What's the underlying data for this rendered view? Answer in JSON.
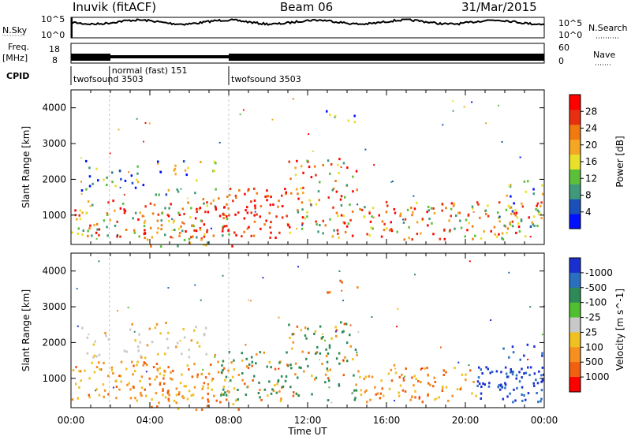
{
  "header": {
    "station": "Inuvik (fitACF)",
    "beam": "Beam 06",
    "date": "31/Mar/2015"
  },
  "top_panels": {
    "nsky_label": "N.Sky",
    "nsky_ticks": [
      "10^5",
      "10^0"
    ],
    "nsearch_label": "N.Search",
    "nsearch_ticks": [
      "10^5",
      "10^0"
    ],
    "freq_label_1": "Freq.",
    "freq_label_2": "[MHz]",
    "freq_ticks": [
      "18",
      "8"
    ],
    "nave_label": "Nave",
    "nave_ticks": [
      "60",
      "0"
    ],
    "cpid_label": "CPID",
    "cpid_segments": [
      {
        "label": "twofsound 3503",
        "start_hour": 0.0
      },
      {
        "label": "normal (fast) 151",
        "start_hour": 1.95
      },
      {
        "label": "twofsound 3503",
        "start_hour": 8.0
      }
    ]
  },
  "chart_data": [
    {
      "type": "heatmap",
      "title": "",
      "xlabel": "Time UT",
      "ylabel": "Slant Range [km]",
      "x_ticks": [
        "00:00",
        "04:00",
        "08:00",
        "12:00",
        "16:00",
        "20:00",
        "00:00"
      ],
      "xlim_hours": [
        0,
        24
      ],
      "y_ticks": [
        1000,
        2000,
        3000,
        4000
      ],
      "ylim": [
        180,
        4500
      ],
      "colorbar": {
        "label": "Power [dB]",
        "ticks": [
          "4",
          "8",
          "12",
          "16",
          "20",
          "24",
          "28"
        ],
        "colors": [
          "#0010ff",
          "#1a50b8",
          "#3f9a7c",
          "#5cbf3a",
          "#e8e02a",
          "#f5a623",
          "#f07a10",
          "#e83010",
          "#ff0000"
        ]
      }
    },
    {
      "type": "heatmap",
      "title": "",
      "xlabel": "Time UT",
      "ylabel": "Slant Range [km]",
      "x_ticks": [
        "00:00",
        "04:00",
        "08:00",
        "12:00",
        "16:00",
        "20:00",
        "00:00"
      ],
      "xlim_hours": [
        0,
        24
      ],
      "y_ticks": [
        1000,
        2000,
        3000,
        4000
      ],
      "ylim": [
        180,
        4500
      ],
      "colorbar": {
        "label": "Velocity [m s^-1]",
        "ticks": [
          "1000",
          "500",
          "100",
          "25",
          "-25",
          "-100",
          "-500",
          "-1000"
        ],
        "colors": [
          "#1a2fd0",
          "#2a6fc0",
          "#2e8b57",
          "#50c030",
          "#c8c8c8",
          "#f0c020",
          "#f59020",
          "#f06010",
          "#ff0000"
        ]
      }
    }
  ],
  "colors": {
    "ground_scatter": "#bdbdbd"
  }
}
